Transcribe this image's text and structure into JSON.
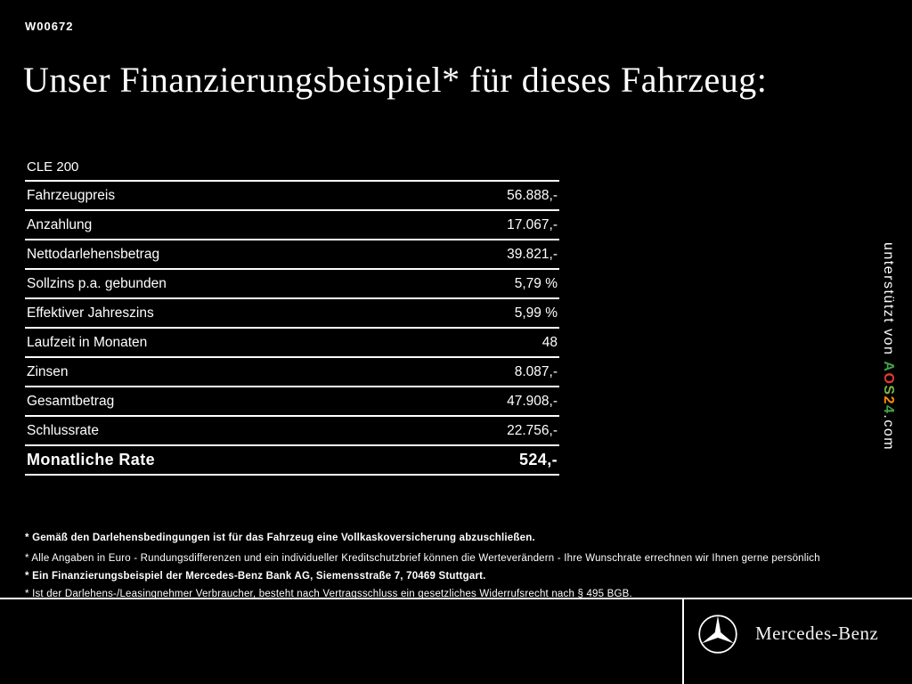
{
  "header": {
    "code": "W00672",
    "title": "Unser Finanzierungsbeispiel* für dieses Fahrzeug:"
  },
  "table": {
    "model": "CLE 200",
    "rows": [
      {
        "label": "Fahrzeugpreis",
        "value": "56.888,-",
        "bold": false
      },
      {
        "label": "Anzahlung",
        "value": "17.067,-",
        "bold": false
      },
      {
        "label": "Nettodarlehensbetrag",
        "value": "39.821,-",
        "bold": false
      },
      {
        "label": "Sollzins p.a. gebunden",
        "value": "5,79 %",
        "bold": false
      },
      {
        "label": "Effektiver Jahreszins",
        "value": "5,99 %",
        "bold": false
      },
      {
        "label": "Laufzeit in Monaten",
        "value": "48",
        "bold": false
      },
      {
        "label": "Zinsen",
        "value": "8.087,-",
        "bold": false
      },
      {
        "label": "Gesamtbetrag",
        "value": "47.908,-",
        "bold": false
      },
      {
        "label": "Schlussrate",
        "value": "22.756,-",
        "bold": false
      },
      {
        "label": "Monatliche Rate",
        "value": "524,-",
        "bold": true
      }
    ]
  },
  "sidebar": {
    "prefix": "unterstützt von ",
    "brand_letters": [
      {
        "char": "A",
        "color": "#43a047"
      },
      {
        "char": "O",
        "color": "#e53935"
      },
      {
        "char": "S",
        "color": "#7cb342"
      },
      {
        "char": "2",
        "color": "#fb8c00"
      },
      {
        "char": "4",
        "color": "#43a047"
      }
    ],
    "suffix": ".com"
  },
  "footnotes": [
    {
      "text": "* Gemäß den Darlehensbedingungen ist für das Fahrzeug eine Vollkaskoversicherung abzuschließen.",
      "bold": true
    },
    {
      "text": "* Alle Angaben in Euro - Rundungsdifferenzen und ein individueller Kreditschutzbrief können die Werteverändern - Ihre Wunschrate errechnen wir Ihnen gerne persönlich",
      "bold": false
    },
    {
      "text": "* Ein Finanzierungsbeispiel der Mercedes-Benz Bank AG, Siemensstraße 7, 70469 Stuttgart.",
      "bold": true
    },
    {
      "text": "* Ist der Darlehens-/Leasingnehmer Verbraucher, besteht nach Vertragsschluss ein gesetzliches Widerrufsrecht nach § 495 BGB.",
      "bold": false
    }
  ],
  "footer": {
    "brand": "Mercedes-Benz"
  },
  "colors": {
    "background": "#000000",
    "text": "#ffffff"
  }
}
